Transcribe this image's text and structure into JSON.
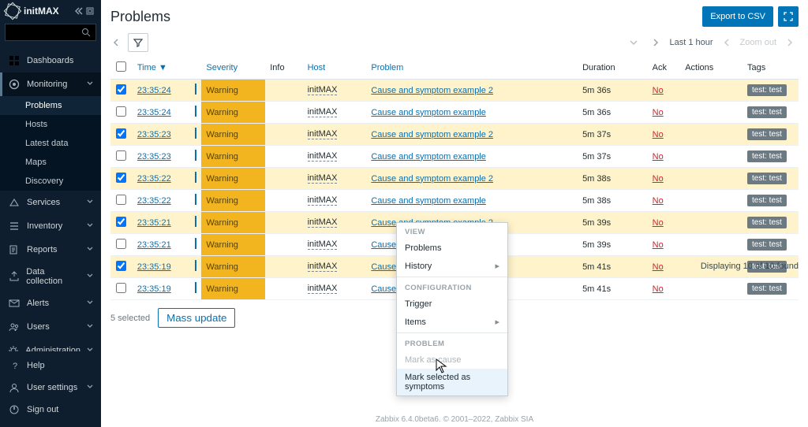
{
  "brand": "initMAX",
  "page": {
    "title": "Problems",
    "export_label": "Export to CSV"
  },
  "toolbar": {
    "range_label": "Last 1 hour",
    "zoom_label": "Zoom out"
  },
  "sidebar": {
    "items": [
      {
        "icon": "dashboard-icon",
        "label": "Dashboards"
      },
      {
        "icon": "monitoring-icon",
        "label": "Monitoring",
        "expanded": true,
        "children": [
          {
            "label": "Problems",
            "active": true
          },
          {
            "label": "Hosts"
          },
          {
            "label": "Latest data"
          },
          {
            "label": "Maps"
          },
          {
            "label": "Discovery"
          }
        ]
      },
      {
        "icon": "services-icon",
        "label": "Services",
        "caret": true
      },
      {
        "icon": "inventory-icon",
        "label": "Inventory",
        "caret": true
      },
      {
        "icon": "reports-icon",
        "label": "Reports",
        "caret": true
      },
      {
        "icon": "datacollection-icon",
        "label": "Data collection",
        "caret": true
      },
      {
        "icon": "alerts-icon",
        "label": "Alerts",
        "caret": true
      },
      {
        "icon": "users-icon",
        "label": "Users",
        "caret": true
      },
      {
        "icon": "admin-icon",
        "label": "Administration",
        "caret": true
      }
    ],
    "bottom": [
      {
        "icon": "help-icon",
        "label": "Help"
      },
      {
        "icon": "usersettings-icon",
        "label": "User settings",
        "caret": true
      },
      {
        "icon": "signout-icon",
        "label": "Sign out"
      }
    ]
  },
  "columns": {
    "time": "Time",
    "severity": "Severity",
    "info": "Info",
    "host": "Host",
    "problem": "Problem",
    "duration": "Duration",
    "ack": "Ack",
    "actions": "Actions",
    "tags": "Tags"
  },
  "sort_arrow": "▼",
  "rows": [
    {
      "checked": true,
      "time": "23:35:24",
      "bar": "#0b6fae",
      "severity": "Warning",
      "host": "initMAX",
      "problem": "Cause and symptom example 2",
      "duration": "5m 36s",
      "ack": "No",
      "tag": "test: test"
    },
    {
      "checked": false,
      "time": "23:35:24",
      "bar": "#0b6fae",
      "severity": "Warning",
      "host": "initMAX",
      "problem": "Cause and symptom example",
      "duration": "5m 36s",
      "ack": "No",
      "tag": "test: test"
    },
    {
      "checked": true,
      "time": "23:35:23",
      "bar": "#0b6fae",
      "severity": "Warning",
      "host": "initMAX",
      "problem": "Cause and symptom example 2",
      "duration": "5m 37s",
      "ack": "No",
      "tag": "test: test"
    },
    {
      "checked": false,
      "time": "23:35:23",
      "bar": "#0b6fae",
      "severity": "Warning",
      "host": "initMAX",
      "problem": "Cause and symptom example",
      "duration": "5m 37s",
      "ack": "No",
      "tag": "test: test"
    },
    {
      "checked": true,
      "time": "23:35:22",
      "bar": "#0b6fae",
      "severity": "Warning",
      "host": "initMAX",
      "problem": "Cause and symptom example 2",
      "duration": "5m 38s",
      "ack": "No",
      "tag": "test: test"
    },
    {
      "checked": false,
      "time": "23:35:22",
      "bar": "#0b6fae",
      "severity": "Warning",
      "host": "initMAX",
      "problem": "Cause and symptom example",
      "duration": "5m 38s",
      "ack": "No",
      "tag": "test: test"
    },
    {
      "checked": true,
      "time": "23:35:21",
      "bar": "#0b6fae",
      "severity": "Warning",
      "host": "initMAX",
      "problem": "Cause and symptom example 2",
      "duration": "5m 39s",
      "ack": "No",
      "tag": "test: test"
    },
    {
      "checked": false,
      "time": "23:35:21",
      "bar": "#0b6fae",
      "severity": "Warning",
      "host": "initMAX",
      "problem": "Cause and symptom example",
      "duration": "5m 39s",
      "ack": "No",
      "tag": "test: test"
    },
    {
      "checked": true,
      "time": "23:35:19",
      "bar": "#0b6fae",
      "severity": "Warning",
      "host": "initMAX",
      "problem": "Cause and sy",
      "duration": "5m 41s",
      "ack": "No",
      "tag": "test: test"
    },
    {
      "checked": false,
      "time": "23:35:19",
      "bar": "#0b6fae",
      "severity": "Warning",
      "host": "initMAX",
      "problem": "Cause and sy",
      "duration": "5m 41s",
      "ack": "No",
      "tag": "test: test"
    }
  ],
  "selection": {
    "count_label": "5 selected",
    "mass_update": "Mass update"
  },
  "display_count": "Displaying 10 of 10 found",
  "context_menu": {
    "sections": [
      {
        "heading": "VIEW",
        "items": [
          {
            "label": "Problems"
          },
          {
            "label": "History",
            "submenu": true
          }
        ]
      },
      {
        "heading": "CONFIGURATION",
        "items": [
          {
            "label": "Trigger"
          },
          {
            "label": "Items",
            "submenu": true
          }
        ]
      },
      {
        "heading": "PROBLEM",
        "items": [
          {
            "label": "Mark as cause",
            "disabled": true
          },
          {
            "label": "Mark selected as symptoms",
            "hover": true
          }
        ]
      }
    ]
  },
  "footer": "Zabbix 6.4.0beta6. © 2001–2022, Zabbix SIA",
  "colors": {
    "accent": "#0275b8",
    "sev_bg": "#f2b41f",
    "sel_bg": "#fff3cc"
  }
}
